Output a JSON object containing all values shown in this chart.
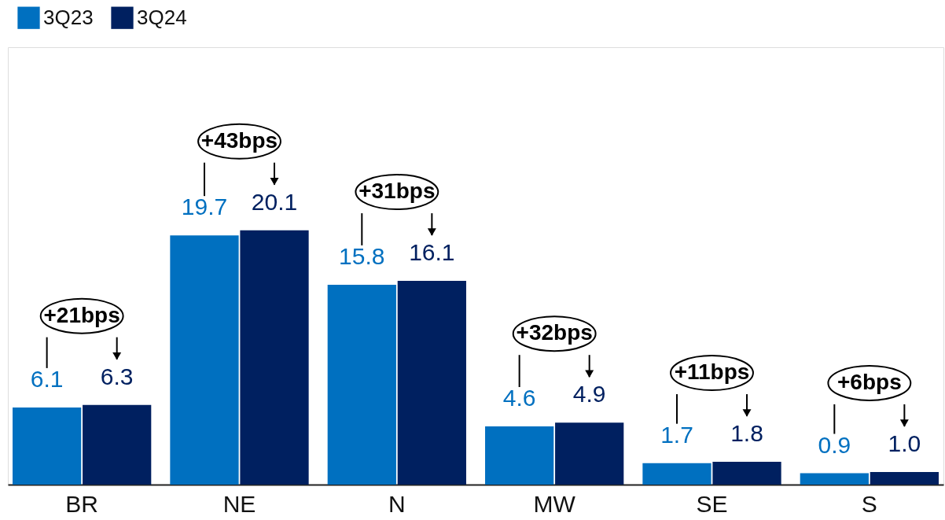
{
  "chart_data": {
    "type": "bar",
    "categories": [
      "BR",
      "NE",
      "N",
      "MW",
      "SE",
      "S"
    ],
    "series": [
      {
        "name": "3Q23",
        "color": "#0070c0",
        "values": [
          6.1,
          19.7,
          15.8,
          4.6,
          1.7,
          0.9
        ],
        "value_labels": [
          "6.1",
          "19.7",
          "15.8",
          "4.6",
          "1.7",
          "0.9"
        ]
      },
      {
        "name": "3Q24",
        "color": "#002060",
        "values": [
          6.3,
          20.1,
          16.1,
          4.9,
          1.8,
          1.0
        ],
        "value_labels": [
          "6.3",
          "20.1",
          "16.1",
          "4.9",
          "1.8",
          "1.0"
        ]
      }
    ],
    "legend": "top left",
    "grid": false,
    "annotations": [
      "+21bps",
      "+43bps",
      "+31bps",
      "+32bps",
      "+11bps",
      "+6bps"
    ]
  }
}
